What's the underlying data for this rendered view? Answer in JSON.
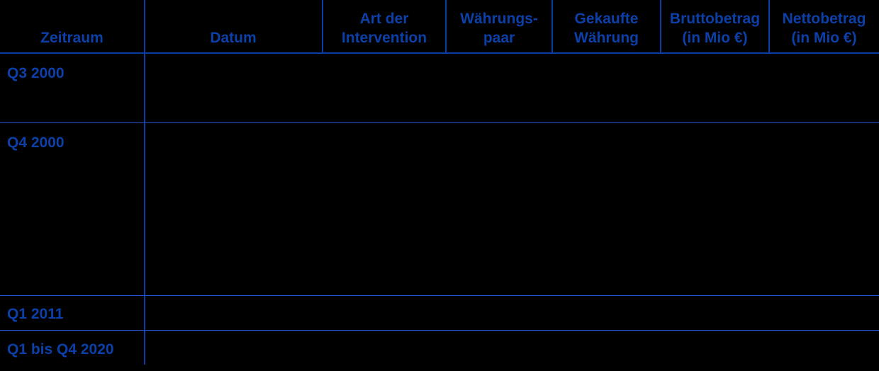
{
  "table": {
    "header": {
      "columns": [
        {
          "id": "zeitraum",
          "label": "Zeitraum"
        },
        {
          "id": "datum",
          "label": "Datum"
        },
        {
          "id": "intervention",
          "label": "Art der\nIntervention"
        },
        {
          "id": "waehrungspaar",
          "label": "Währungs-\npaar"
        },
        {
          "id": "gekaufte",
          "label": "Gekaufte\nWährung"
        },
        {
          "id": "brutto",
          "label": "Bruttobetrag\n(in Mio €)"
        },
        {
          "id": "netto",
          "label": "Nettobetrag\n(in Mio €)"
        }
      ]
    },
    "rows": [
      {
        "zeitraum": "Q3 2000",
        "datum": "",
        "intervention": "",
        "waehrungspaar": "",
        "gekaufte": "",
        "brutto": "",
        "netto": ""
      },
      {
        "zeitraum": "Q4 2000",
        "datum": "",
        "intervention": "",
        "waehrungspaar": "",
        "gekaufte": "",
        "brutto": "",
        "netto": ""
      },
      {
        "zeitraum": "Q1 2011",
        "datum": "",
        "intervention": "",
        "waehrungspaar": "",
        "gekaufte": "",
        "brutto": "",
        "netto": ""
      },
      {
        "zeitraum": "Q1 bis Q4 2020",
        "datum": "",
        "intervention": "",
        "waehrungspaar": "",
        "gekaufte": "",
        "brutto": "",
        "netto": ""
      }
    ]
  },
  "colors": {
    "background": "#000000",
    "text_blue": "#0C40A8",
    "grid_dark": "#0C3DA4",
    "grid_light": "#2B52D0"
  }
}
